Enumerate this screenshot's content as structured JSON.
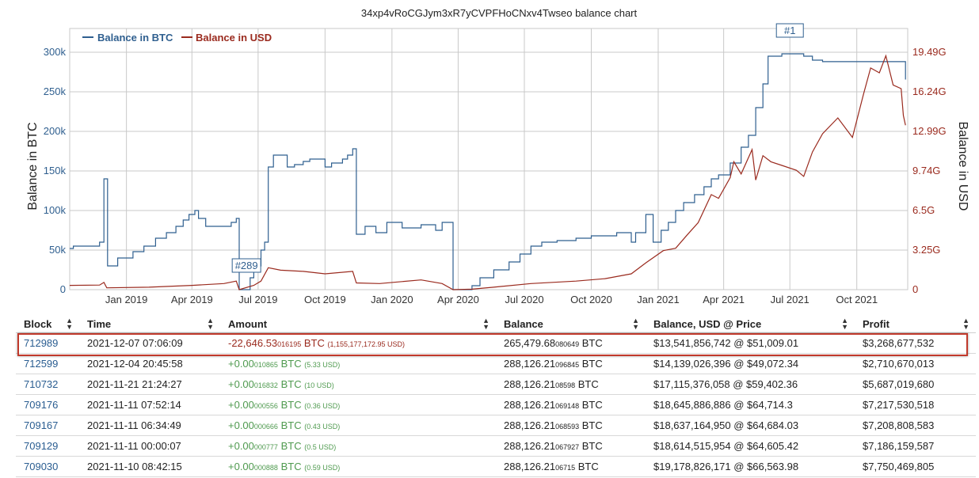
{
  "chart_data": {
    "type": "line",
    "title": "34xp4vRoCGJym3xR7yCVPFHoCNxv4Twseo balance chart",
    "legend": {
      "placement": "top-left",
      "entries": [
        "Balance in BTC",
        "Balance in USD"
      ]
    },
    "grid": true,
    "x_axis": {
      "ticks": [
        "Jan 2019",
        "Apr 2019",
        "Jul 2019",
        "Oct 2019",
        "Jan 2020",
        "Apr 2020",
        "Jul 2020",
        "Oct 2020",
        "Jan 2021",
        "Apr 2021",
        "Jul 2021",
        "Oct 2021"
      ],
      "range": [
        "2018-10-15",
        "2021-12-10"
      ]
    },
    "y_left": {
      "label": "Balance in BTC",
      "ticks": [
        "0",
        "50k",
        "100k",
        "150k",
        "200k",
        "250k",
        "300k"
      ],
      "range": [
        0,
        330000
      ]
    },
    "y_right": {
      "label": "Balance in USD",
      "ticks": [
        "0",
        "3.25G",
        "6.5G",
        "9.74G",
        "12.99G",
        "16.24G",
        "19.49G"
      ],
      "range": [
        0,
        21440000000
      ]
    },
    "annotations": [
      {
        "label": "#289",
        "date": "2019-06-15"
      },
      {
        "label": "#1",
        "date": "2021-07-01"
      }
    ],
    "series": [
      {
        "name": "Balance in BTC",
        "color": "#2f5f8f",
        "step": true,
        "points": [
          [
            "2018-10-15",
            52000
          ],
          [
            "2018-10-20",
            55000
          ],
          [
            "2018-11-25",
            60000
          ],
          [
            "2018-12-01",
            140000
          ],
          [
            "2018-12-06",
            30000
          ],
          [
            "2018-12-20",
            40000
          ],
          [
            "2019-01-10",
            48000
          ],
          [
            "2019-01-25",
            55000
          ],
          [
            "2019-02-10",
            65000
          ],
          [
            "2019-02-25",
            72000
          ],
          [
            "2019-03-10",
            80000
          ],
          [
            "2019-03-20",
            88000
          ],
          [
            "2019-03-28",
            95000
          ],
          [
            "2019-04-05",
            100000
          ],
          [
            "2019-04-10",
            90000
          ],
          [
            "2019-04-20",
            80000
          ],
          [
            "2019-05-25",
            85000
          ],
          [
            "2019-06-01",
            90000
          ],
          [
            "2019-06-05",
            0
          ],
          [
            "2019-06-20",
            15000
          ],
          [
            "2019-06-25",
            30000
          ],
          [
            "2019-07-05",
            50000
          ],
          [
            "2019-07-10",
            60000
          ],
          [
            "2019-07-15",
            155000
          ],
          [
            "2019-07-22",
            170000
          ],
          [
            "2019-08-10",
            155000
          ],
          [
            "2019-08-20",
            158000
          ],
          [
            "2019-09-01",
            162000
          ],
          [
            "2019-09-10",
            165000
          ],
          [
            "2019-10-01",
            155000
          ],
          [
            "2019-10-10",
            160000
          ],
          [
            "2019-10-25",
            165000
          ],
          [
            "2019-11-01",
            170000
          ],
          [
            "2019-11-08",
            178000
          ],
          [
            "2019-11-13",
            70000
          ],
          [
            "2019-11-25",
            80000
          ],
          [
            "2019-12-10",
            72000
          ],
          [
            "2019-12-25",
            85000
          ],
          [
            "2020-01-15",
            78000
          ],
          [
            "2020-02-10",
            82000
          ],
          [
            "2020-03-01",
            75000
          ],
          [
            "2020-03-10",
            85000
          ],
          [
            "2020-03-25",
            0
          ],
          [
            "2020-04-20",
            5000
          ],
          [
            "2020-05-01",
            15000
          ],
          [
            "2020-05-20",
            25000
          ],
          [
            "2020-06-10",
            35000
          ],
          [
            "2020-06-25",
            45000
          ],
          [
            "2020-07-10",
            55000
          ],
          [
            "2020-07-25",
            60000
          ],
          [
            "2020-08-15",
            62000
          ],
          [
            "2020-09-10",
            65000
          ],
          [
            "2020-10-01",
            68000
          ],
          [
            "2020-11-05",
            72000
          ],
          [
            "2020-11-25",
            60000
          ],
          [
            "2020-12-01",
            72000
          ],
          [
            "2020-12-15",
            95000
          ],
          [
            "2020-12-25",
            60000
          ],
          [
            "2021-01-05",
            75000
          ],
          [
            "2021-01-15",
            85000
          ],
          [
            "2021-01-25",
            100000
          ],
          [
            "2021-02-05",
            110000
          ],
          [
            "2021-02-20",
            120000
          ],
          [
            "2021-03-05",
            130000
          ],
          [
            "2021-03-15",
            140000
          ],
          [
            "2021-03-25",
            145000
          ],
          [
            "2021-04-10",
            160000
          ],
          [
            "2021-04-25",
            180000
          ],
          [
            "2021-05-05",
            195000
          ],
          [
            "2021-05-15",
            230000
          ],
          [
            "2021-05-25",
            260000
          ],
          [
            "2021-06-01",
            295000
          ],
          [
            "2021-06-20",
            298000
          ],
          [
            "2021-07-20",
            295000
          ],
          [
            "2021-08-01",
            290000
          ],
          [
            "2021-08-15",
            288126
          ],
          [
            "2021-12-07",
            265480
          ]
        ]
      },
      {
        "name": "Balance in USD",
        "color": "#9a2a1e",
        "step": false,
        "points": [
          [
            "2018-10-15",
            350000000
          ],
          [
            "2018-11-25",
            380000000
          ],
          [
            "2018-12-01",
            600000000
          ],
          [
            "2018-12-05",
            150000000
          ],
          [
            "2019-02-01",
            200000000
          ],
          [
            "2019-04-01",
            350000000
          ],
          [
            "2019-05-15",
            500000000
          ],
          [
            "2019-06-01",
            700000000
          ],
          [
            "2019-06-05",
            0
          ],
          [
            "2019-06-25",
            350000000
          ],
          [
            "2019-07-05",
            700000000
          ],
          [
            "2019-07-15",
            1800000000
          ],
          [
            "2019-08-01",
            1600000000
          ],
          [
            "2019-09-01",
            1500000000
          ],
          [
            "2019-10-01",
            1300000000
          ],
          [
            "2019-11-08",
            1500000000
          ],
          [
            "2019-11-13",
            550000000
          ],
          [
            "2019-12-15",
            500000000
          ],
          [
            "2020-02-10",
            800000000
          ],
          [
            "2020-03-10",
            500000000
          ],
          [
            "2020-03-25",
            0
          ],
          [
            "2020-04-20",
            40000000
          ],
          [
            "2020-05-20",
            200000000
          ],
          [
            "2020-07-10",
            500000000
          ],
          [
            "2020-09-10",
            700000000
          ],
          [
            "2020-10-20",
            900000000
          ],
          [
            "2020-11-25",
            1300000000
          ],
          [
            "2020-12-15",
            2200000000
          ],
          [
            "2021-01-08",
            3200000000
          ],
          [
            "2021-01-25",
            3400000000
          ],
          [
            "2021-02-10",
            4500000000
          ],
          [
            "2021-02-25",
            5500000000
          ],
          [
            "2021-03-15",
            7800000000
          ],
          [
            "2021-03-25",
            7500000000
          ],
          [
            "2021-04-10",
            9200000000
          ],
          [
            "2021-04-15",
            10500000000
          ],
          [
            "2021-04-25",
            9500000000
          ],
          [
            "2021-05-10",
            11500000000
          ],
          [
            "2021-05-15",
            9000000000
          ],
          [
            "2021-05-25",
            11000000000
          ],
          [
            "2021-06-05",
            10500000000
          ],
          [
            "2021-06-20",
            10200000000
          ],
          [
            "2021-07-10",
            9800000000
          ],
          [
            "2021-07-20",
            9300000000
          ],
          [
            "2021-08-01",
            11300000000
          ],
          [
            "2021-08-15",
            12800000000
          ],
          [
            "2021-09-05",
            14100000000
          ],
          [
            "2021-09-25",
            12500000000
          ],
          [
            "2021-10-10",
            16000000000
          ],
          [
            "2021-10-20",
            18200000000
          ],
          [
            "2021-11-01",
            17800000000
          ],
          [
            "2021-11-10",
            19200000000
          ],
          [
            "2021-11-20",
            16800000000
          ],
          [
            "2021-12-01",
            16500000000
          ],
          [
            "2021-12-04",
            14300000000
          ],
          [
            "2021-12-07",
            13500000000
          ]
        ]
      }
    ]
  },
  "table": {
    "headers": [
      "Block",
      "Time",
      "Amount",
      "Balance",
      "Balance, USD @ Price",
      "Profit"
    ],
    "rows": [
      {
        "block": "712989",
        "time": "2021-12-07 07:06:09",
        "amount_main": "-22,646.53",
        "amount_small": "016195",
        "amount_unit": "BTC",
        "amount_usd": "(1,155,177,172.95 USD)",
        "balance_main": "265,479.68",
        "balance_small": "080649",
        "balance_unit": "BTC",
        "balance_usd": "$13,541,856,742 @ $51,009.01",
        "profit": "$3,268,677,532",
        "sign": "neg",
        "highlighted": true
      },
      {
        "block": "712599",
        "time": "2021-12-04 20:45:58",
        "amount_main": "+0.00",
        "amount_small": "010865",
        "amount_unit": "BTC",
        "amount_usd": "(5.33 USD)",
        "balance_main": "288,126.21",
        "balance_small": "096845",
        "balance_unit": "BTC",
        "balance_usd": "$14,139,026,396 @ $49,072.34",
        "profit": "$2,710,670,013",
        "sign": "pos",
        "highlighted": false
      },
      {
        "block": "710732",
        "time": "2021-11-21 21:24:27",
        "amount_main": "+0.00",
        "amount_small": "016832",
        "amount_unit": "BTC",
        "amount_usd": "(10 USD)",
        "balance_main": "288,126.21",
        "balance_small": "08598",
        "balance_unit": "BTC",
        "balance_usd": "$17,115,376,058 @ $59,402.36",
        "profit": "$5,687,019,680",
        "sign": "pos",
        "highlighted": false
      },
      {
        "block": "709176",
        "time": "2021-11-11 07:52:14",
        "amount_main": "+0.00",
        "amount_small": "000556",
        "amount_unit": "BTC",
        "amount_usd": "(0.36 USD)",
        "balance_main": "288,126.21",
        "balance_small": "069148",
        "balance_unit": "BTC",
        "balance_usd": "$18,645,886,886 @ $64,714.3",
        "profit": "$7,217,530,518",
        "sign": "pos",
        "highlighted": false
      },
      {
        "block": "709167",
        "time": "2021-11-11 06:34:49",
        "amount_main": "+0.00",
        "amount_small": "000666",
        "amount_unit": "BTC",
        "amount_usd": "(0.43 USD)",
        "balance_main": "288,126.21",
        "balance_small": "068593",
        "balance_unit": "BTC",
        "balance_usd": "$18,637,164,950 @ $64,684.03",
        "profit": "$7,208,808,583",
        "sign": "pos",
        "highlighted": false
      },
      {
        "block": "709129",
        "time": "2021-11-11 00:00:07",
        "amount_main": "+0.00",
        "amount_small": "000777",
        "amount_unit": "BTC",
        "amount_usd": "(0.5 USD)",
        "balance_main": "288,126.21",
        "balance_small": "067927",
        "balance_unit": "BTC",
        "balance_usd": "$18,614,515,954 @ $64,605.42",
        "profit": "$7,186,159,587",
        "sign": "pos",
        "highlighted": false
      },
      {
        "block": "709030",
        "time": "2021-11-10 08:42:15",
        "amount_main": "+0.00",
        "amount_small": "000888",
        "amount_unit": "BTC",
        "amount_usd": "(0.59 USD)",
        "balance_main": "288,126.21",
        "balance_small": "06715",
        "balance_unit": "BTC",
        "balance_usd": "$19,178,826,171 @ $66,563.98",
        "profit": "$7,750,469,805",
        "sign": "pos",
        "highlighted": false
      }
    ]
  }
}
